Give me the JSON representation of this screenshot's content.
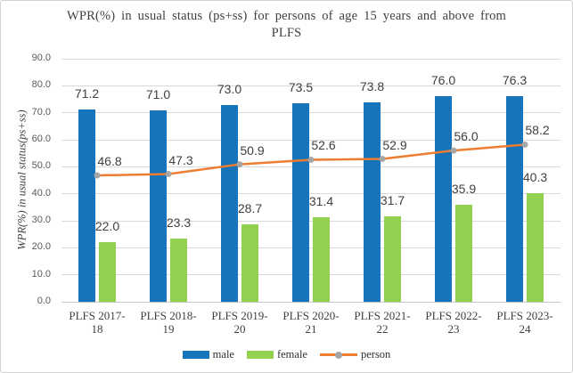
{
  "frame": {
    "background": "#FFFFFF",
    "border_color": "#D2D2D2"
  },
  "chart_data": {
    "type": "bar",
    "subtype": "grouped bars with overlaid line series",
    "title": "WPR(%) in usual status (ps+ss) for persons of age 15 years and above from PLFS",
    "ylabel": "WPR(%) in usual status(ps+ss)",
    "xlabel": "",
    "categories": [
      "PLFS 2017-18",
      "PLFS 2018-19",
      "PLFS 2019-20",
      "PLFS 2020-21",
      "PLFS 2021-22",
      "PLFS 2022-23",
      "PLFS 2023-24"
    ],
    "series": [
      {
        "name": "male",
        "type": "bar",
        "color": "#1674BB",
        "values": [
          71.2,
          71.0,
          73.0,
          73.5,
          73.8,
          76.0,
          76.3
        ]
      },
      {
        "name": "female",
        "type": "bar",
        "color": "#92D050",
        "values": [
          22.0,
          23.3,
          28.7,
          31.4,
          31.7,
          35.9,
          40.3
        ]
      },
      {
        "name": "person",
        "type": "line",
        "color": "#ED7D31",
        "marker_color": "#A6A6A6",
        "values": [
          46.8,
          47.3,
          50.9,
          52.6,
          52.9,
          56.0,
          58.2
        ]
      }
    ],
    "ylim": [
      0,
      90
    ],
    "yticks": [
      "0.0",
      "10.0",
      "20.0",
      "30.0",
      "40.0",
      "50.0",
      "60.0",
      "70.0",
      "80.0",
      "90.0"
    ],
    "grid": true,
    "data_labels": true,
    "label_decimals": 1,
    "legend_position": "bottom",
    "colors": {
      "gridline": "#D9D9D9",
      "axis_line": "#C6C6C6",
      "tick_text": "#595959",
      "data_label_text": "#404040",
      "title_text": "#3F3F3F"
    }
  }
}
